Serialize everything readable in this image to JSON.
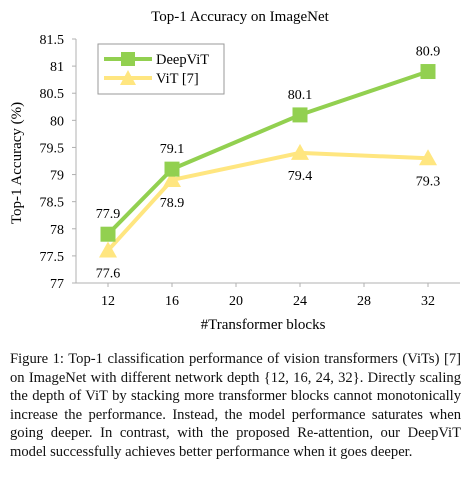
{
  "chart_data": {
    "type": "line",
    "title": "Top-1 Accuracy on ImageNet",
    "xlabel": "#Transformer blocks",
    "ylabel": "Top-1 Accuracy (%)",
    "xlim": [
      10,
      34
    ],
    "ylim": [
      77,
      81.5
    ],
    "xticks": [
      12,
      16,
      20,
      24,
      28,
      32
    ],
    "xtick_labels": [
      "12",
      "16",
      "20",
      "24",
      "28",
      "32"
    ],
    "yticks": [
      77,
      77.5,
      78,
      78.5,
      79,
      79.5,
      80,
      80.5,
      81,
      81.5
    ],
    "ytick_labels": [
      "77",
      "77.5",
      "78",
      "78.5",
      "79",
      "79.5",
      "80",
      "80.5",
      "81",
      "81.5"
    ],
    "grid": false,
    "legend_position": "top-left",
    "series": [
      {
        "name": "DeepViT",
        "color": "#92d050",
        "marker": "square",
        "x": [
          12,
          16,
          24,
          32
        ],
        "y": [
          77.9,
          79.1,
          80.1,
          80.9
        ],
        "labels": [
          "77.9",
          "79.1",
          "80.1",
          "80.9"
        ],
        "label_position": "above"
      },
      {
        "name": "ViT [7]",
        "color": "#ffe680",
        "marker": "triangle",
        "x": [
          12,
          16,
          24,
          32
        ],
        "y": [
          77.6,
          78.9,
          79.4,
          79.3
        ],
        "labels": [
          "77.6",
          "78.9",
          "79.4",
          "79.3"
        ],
        "label_position": "below"
      }
    ]
  },
  "caption": "Figure 1: Top-1 classification performance of vision transformers (ViTs) [7] on ImageNet with different network depth {12, 16, 24, 32}. Directly scaling the depth of ViT by stacking more transformer blocks cannot monotonically increase the performance. Instead, the model performance saturates when going deeper. In contrast, with the proposed Re-attention, our DeepViT model successfully achieves better performance when it goes deeper."
}
